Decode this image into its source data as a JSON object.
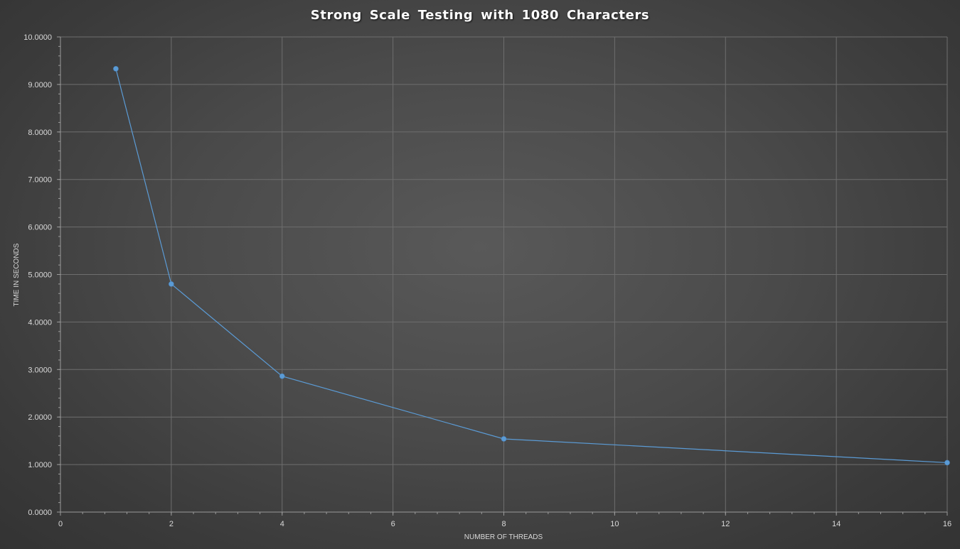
{
  "chart_data": {
    "type": "line",
    "title": "Strong Scale Testing with 1080 Characters",
    "xlabel": "NUMBER OF THREADS",
    "ylabel": "TIME IN SECONDS",
    "x": [
      1,
      2,
      4,
      8,
      16
    ],
    "series": [
      {
        "values": [
          9.33,
          4.8,
          2.86,
          1.54,
          1.04
        ]
      }
    ],
    "xlim": [
      0,
      16
    ],
    "ylim": [
      0,
      10
    ],
    "x_ticks": [
      "0",
      "2",
      "4",
      "6",
      "8",
      "10",
      "12",
      "14",
      "16"
    ],
    "y_ticks": [
      "0.0000",
      "1.0000",
      "2.0000",
      "3.0000",
      "4.0000",
      "5.0000",
      "6.0000",
      "7.0000",
      "8.0000",
      "9.0000",
      "10.0000"
    ],
    "grid": true,
    "legend": "none",
    "colors": {
      "series": "#5b9bd5",
      "grid": "#6e6e6e",
      "axis": "#9a9a9a",
      "text": "#d9d9d9",
      "title": "#ffffff"
    }
  }
}
